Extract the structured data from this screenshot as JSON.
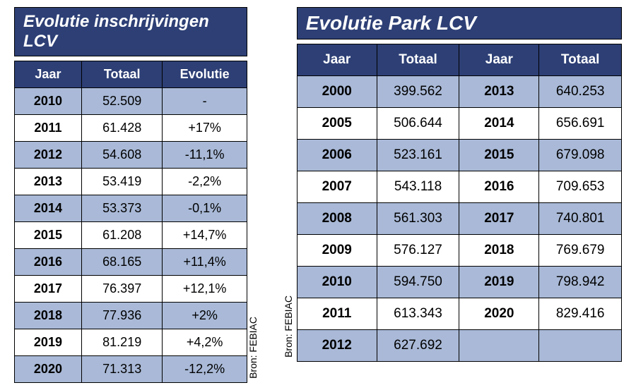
{
  "colors": {
    "header_bg": "#2d3f75",
    "header_fg": "#ffffff",
    "row_shade": "#a9b9d7",
    "row_plain": "#ffffff",
    "border": "#000000",
    "text": "#000000"
  },
  "left": {
    "title": "Evolutie inschrijvingen LCV",
    "title_fontsize": 24,
    "source": "Bron: FEBIAC",
    "columns": [
      "Jaar",
      "Totaal",
      "Evolutie"
    ],
    "rows": [
      {
        "year": "2010",
        "total": "52.509",
        "evo": "-"
      },
      {
        "year": "2011",
        "total": "61.428",
        "evo": "+17%"
      },
      {
        "year": "2012",
        "total": "54.608",
        "evo": "-11,1%"
      },
      {
        "year": "2013",
        "total": "53.419",
        "evo": "-2,2%"
      },
      {
        "year": "2014",
        "total": "53.373",
        "evo": "-0,1%"
      },
      {
        "year": "2015",
        "total": "61.208",
        "evo": "+14,7%"
      },
      {
        "year": "2016",
        "total": "68.165",
        "evo": "+11,4%"
      },
      {
        "year": "2017",
        "total": "76.397",
        "evo": "+12,1%"
      },
      {
        "year": "2018",
        "total": "77.936",
        "evo": "+2%"
      },
      {
        "year": "2019",
        "total": "81.219",
        "evo": "+4,2%"
      },
      {
        "year": "2020",
        "total": "71.313",
        "evo": "-12,2%"
      }
    ]
  },
  "right": {
    "title": "Evolutie Park LCV",
    "title_fontsize": 28,
    "source": "Bron: FEBIAC",
    "columns": [
      "Jaar",
      "Totaal",
      "Jaar",
      "Totaal"
    ],
    "rows": [
      {
        "y1": "2000",
        "t1": "399.562",
        "y2": "2013",
        "t2": "640.253"
      },
      {
        "y1": "2005",
        "t1": "506.644",
        "y2": "2014",
        "t2": "656.691"
      },
      {
        "y1": "2006",
        "t1": "523.161",
        "y2": "2015",
        "t2": "679.098"
      },
      {
        "y1": "2007",
        "t1": "543.118",
        "y2": "2016",
        "t2": "709.653"
      },
      {
        "y1": "2008",
        "t1": "561.303",
        "y2": "2017",
        "t2": "740.801"
      },
      {
        "y1": "2009",
        "t1": "576.127",
        "y2": "2018",
        "t2": "769.679"
      },
      {
        "y1": "2010",
        "t1": "594.750",
        "y2": "2019",
        "t2": "798.942"
      },
      {
        "y1": "2011",
        "t1": "613.343",
        "y2": "2020",
        "t2": "829.416"
      },
      {
        "y1": "2012",
        "t1": "627.692",
        "y2": "",
        "t2": ""
      }
    ]
  }
}
